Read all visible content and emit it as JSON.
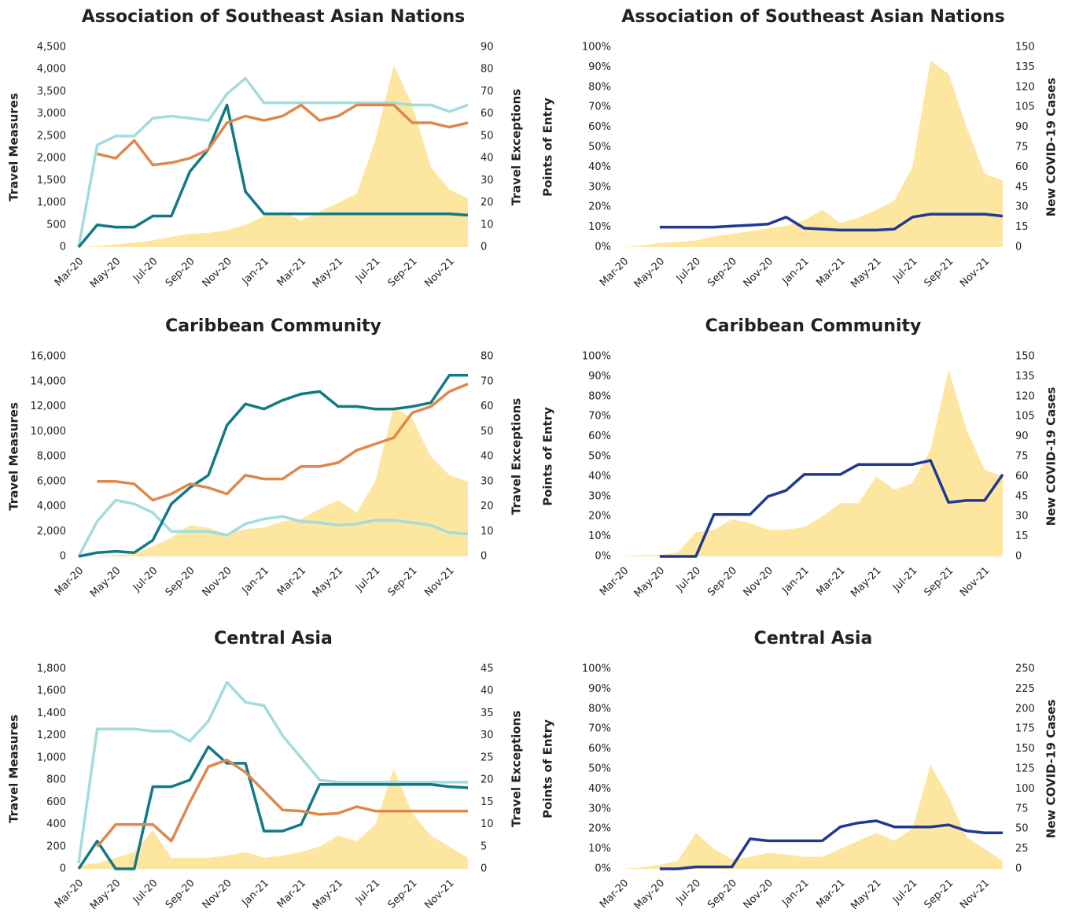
{
  "chart_data": [
    {
      "type": "line",
      "title": "Association of Southeast Asian Nations",
      "ylabel": "Travel Measures",
      "y2label": "Travel Exceptions",
      "categories": [
        "Mar-20",
        null,
        "May-20",
        null,
        "Jul-20",
        null,
        "Sep-20",
        null,
        "Nov-20",
        null,
        "Jan-21",
        null,
        "Mar-21",
        null,
        "May-21",
        null,
        "Jul-21",
        null,
        "Sep-21",
        null,
        "Nov-21",
        null
      ],
      "ylim": [
        0,
        4500
      ],
      "yticks": [
        0,
        500,
        {
          "value": 1000,
          "label": "1,000"
        },
        {
          "value": 1500,
          "label": "1,500"
        },
        {
          "value": 2000,
          "label": "2,000"
        },
        {
          "value": 2500,
          "label": "2,500"
        },
        {
          "value": 3000,
          "label": "3,000"
        },
        {
          "value": 3500,
          "label": "3,500"
        },
        {
          "value": 4000,
          "label": "4,000"
        },
        {
          "value": 4500,
          "label": "4,500"
        }
      ],
      "y2lim": [
        0,
        90
      ],
      "y2ticks": [
        0,
        10,
        20,
        30,
        40,
        50,
        60,
        70,
        80,
        90
      ],
      "series": [
        {
          "color": "#fde6a0",
          "area": true,
          "values": [
            0,
            20,
            60,
            100,
            150,
            230,
            300,
            320,
            380,
            500,
            700,
            800,
            600,
            800,
            1000,
            1200,
            2400,
            4100,
            3200,
            1800,
            1300,
            1100
          ]
        },
        {
          "color": "#a3dcdc",
          "values": [
            0,
            2300,
            2500,
            2500,
            2900,
            2950,
            2900,
            2850,
            3450,
            3800,
            3250,
            3250,
            3250,
            3250,
            3250,
            3250,
            3250,
            3250,
            3200,
            3200,
            3050,
            3200
          ]
        },
        {
          "color": "#127a86",
          "values": [
            0,
            500,
            450,
            450,
            700,
            700,
            1700,
            2200,
            3200,
            1250,
            750,
            750,
            750,
            750,
            750,
            750,
            750,
            750,
            750,
            750,
            750,
            720
          ]
        },
        {
          "color": "#e0874b",
          "values": [
            null,
            2100,
            2000,
            2400,
            1850,
            1900,
            2000,
            2200,
            2800,
            2950,
            2850,
            2950,
            3200,
            2850,
            2950,
            3200,
            3200,
            3200,
            2800,
            2800,
            2700,
            2800
          ]
        }
      ]
    },
    {
      "type": "line",
      "title": "Association of Southeast Asian Nations",
      "ylabel": "Points of Entry",
      "y2label": "New COVID-19 Cases",
      "categories": [
        "Mar-20",
        null,
        "May-20",
        null,
        "Jul-20",
        null,
        "Sep-20",
        null,
        "Nov-20",
        null,
        "Jan-21",
        null,
        "Mar-21",
        null,
        "May-21",
        null,
        "Jul-21",
        null,
        "Sep-21",
        null,
        "Nov-21",
        null
      ],
      "ylim": [
        0,
        100
      ],
      "yticks": [
        {
          "value": 0,
          "label": "0%"
        },
        {
          "value": 10,
          "label": "10%"
        },
        {
          "value": 20,
          "label": "20%"
        },
        {
          "value": 30,
          "label": "30%"
        },
        {
          "value": 40,
          "label": "40%"
        },
        {
          "value": 50,
          "label": "50%"
        },
        {
          "value": 60,
          "label": "60%"
        },
        {
          "value": 70,
          "label": "70%"
        },
        {
          "value": 80,
          "label": "80%"
        },
        {
          "value": 90,
          "label": "90%"
        },
        {
          "value": 100,
          "label": "100%"
        }
      ],
      "y2lim": [
        0,
        150
      ],
      "y2ticks": [
        0,
        15,
        30,
        45,
        60,
        75,
        90,
        105,
        120,
        135,
        150
      ],
      "series": [
        {
          "color": "#fde6a0",
          "area": true,
          "axis": "y2",
          "values": [
            0,
            1,
            3,
            4,
            5,
            8,
            10,
            12,
            14,
            16,
            20,
            28,
            18,
            22,
            28,
            35,
            60,
            140,
            130,
            90,
            55,
            50
          ]
        },
        {
          "color": "#1f3a93",
          "values": [
            null,
            null,
            10,
            10,
            10,
            10,
            10.5,
            11,
            11.5,
            15,
            9.5,
            9,
            8.5,
            8.5,
            8.5,
            9,
            15,
            16.5,
            16.5,
            16.5,
            16.5,
            15.5
          ]
        }
      ]
    },
    {
      "type": "line",
      "title": "Caribbean Community",
      "ylabel": "Travel Measures",
      "y2label": "Travel Exceptions",
      "categories": [
        "Mar-20",
        null,
        "May-20",
        null,
        "Jul-20",
        null,
        "Sep-20",
        null,
        "Nov-20",
        null,
        "Jan-21",
        null,
        "Mar-21",
        null,
        "May-21",
        null,
        "Jul-21",
        null,
        "Sep-21",
        null,
        "Nov-21",
        null
      ],
      "ylim": [
        0,
        16000
      ],
      "yticks": [
        0,
        {
          "value": 2000,
          "label": "2,000"
        },
        {
          "value": 4000,
          "label": "4,000"
        },
        {
          "value": 6000,
          "label": "6,000"
        },
        {
          "value": 8000,
          "label": "8,000"
        },
        {
          "value": 10000,
          "label": "10,000"
        },
        {
          "value": 12000,
          "label": "12,000"
        },
        {
          "value": 14000,
          "label": "14,000"
        },
        {
          "value": 16000,
          "label": "16,000"
        }
      ],
      "y2lim": [
        0,
        80
      ],
      "y2ticks": [
        0,
        10,
        20,
        30,
        40,
        50,
        60,
        70,
        80
      ],
      "series": [
        {
          "color": "#fde6a0",
          "area": true,
          "values": [
            0,
            50,
            100,
            200,
            800,
            1500,
            2500,
            2300,
            1800,
            2200,
            2300,
            2800,
            3000,
            3800,
            4500,
            3500,
            6000,
            12000,
            11000,
            8000,
            6500,
            6000
          ]
        },
        {
          "color": "#a3dcdc",
          "values": [
            0,
            2800,
            4500,
            4200,
            3500,
            2000,
            2000,
            2000,
            1700,
            2600,
            3000,
            3200,
            2800,
            2700,
            2500,
            2600,
            2900,
            2900,
            2700,
            2500,
            1900,
            1800
          ]
        },
        {
          "color": "#127a86",
          "values": [
            0,
            300,
            400,
            300,
            1300,
            4200,
            5500,
            6500,
            10500,
            12200,
            11800,
            12500,
            13000,
            13200,
            12000,
            12000,
            11800,
            11800,
            12000,
            12300,
            14500,
            14500
          ]
        },
        {
          "color": "#e0874b",
          "values": [
            null,
            6000,
            6000,
            5800,
            4500,
            5000,
            5800,
            5500,
            5000,
            6500,
            6200,
            6200,
            7200,
            7200,
            7500,
            8500,
            9000,
            9500,
            11500,
            12000,
            13200,
            13800
          ]
        }
      ]
    },
    {
      "type": "line",
      "title": "Caribbean Community",
      "ylabel": "Points of Entry",
      "y2label": "New COVID-19 Cases",
      "categories": [
        "Mar-20",
        null,
        "May-20",
        null,
        "Jul-20",
        null,
        "Sep-20",
        null,
        "Nov-20",
        null,
        "Jan-21",
        null,
        "Mar-21",
        null,
        "May-21",
        null,
        "Jul-21",
        null,
        "Sep-21",
        null,
        "Nov-21",
        null
      ],
      "ylim": [
        0,
        100
      ],
      "yticks": [
        {
          "value": 0,
          "label": "0%"
        },
        {
          "value": 10,
          "label": "10%"
        },
        {
          "value": 20,
          "label": "20%"
        },
        {
          "value": 30,
          "label": "30%"
        },
        {
          "value": 40,
          "label": "40%"
        },
        {
          "value": 50,
          "label": "50%"
        },
        {
          "value": 60,
          "label": "60%"
        },
        {
          "value": 70,
          "label": "70%"
        },
        {
          "value": 80,
          "label": "80%"
        },
        {
          "value": 90,
          "label": "90%"
        },
        {
          "value": 100,
          "label": "100%"
        }
      ],
      "y2lim": [
        0,
        150
      ],
      "y2ticks": [
        0,
        15,
        30,
        45,
        60,
        75,
        90,
        105,
        120,
        135,
        150
      ],
      "series": [
        {
          "color": "#fde6a0",
          "area": true,
          "axis": "y2",
          "values": [
            0,
            1,
            1,
            3,
            18,
            20,
            28,
            25,
            20,
            20,
            22,
            30,
            40,
            40,
            60,
            50,
            55,
            80,
            140,
            95,
            65,
            60
          ]
        },
        {
          "color": "#1f3a93",
          "values": [
            null,
            null,
            0,
            0,
            0,
            21,
            21,
            21,
            30,
            33,
            41,
            41,
            41,
            46,
            46,
            46,
            46,
            48,
            27,
            28,
            28,
            41
          ]
        }
      ]
    },
    {
      "type": "line",
      "title": "Central Asia",
      "ylabel": "Travel Measures",
      "y2label": "Travel Exceptions",
      "categories": [
        "Mar-20",
        null,
        "May-20",
        null,
        "Jul-20",
        null,
        "Sep-20",
        null,
        "Nov-20",
        null,
        "Jan-21",
        null,
        "Mar-21",
        null,
        "May-21",
        null,
        "Jul-21",
        null,
        "Sep-21",
        null,
        "Nov-21",
        null
      ],
      "ylim": [
        0,
        1800
      ],
      "yticks": [
        0,
        200,
        400,
        600,
        800,
        {
          "value": 1000,
          "label": "1,000"
        },
        {
          "value": 1200,
          "label": "1,200"
        },
        {
          "value": 1400,
          "label": "1,400"
        },
        {
          "value": 1600,
          "label": "1,600"
        },
        {
          "value": 1800,
          "label": "1,800"
        }
      ],
      "y2lim": [
        0,
        45
      ],
      "y2ticks": [
        0,
        5,
        10,
        15,
        20,
        25,
        30,
        35,
        40,
        45
      ],
      "series": [
        {
          "color": "#fde6a0",
          "area": true,
          "values": [
            30,
            50,
            100,
            150,
            350,
            100,
            100,
            100,
            120,
            150,
            100,
            120,
            150,
            200,
            300,
            250,
            400,
            900,
            500,
            300,
            200,
            100
          ]
        },
        {
          "color": "#a3dcdc",
          "values": [
            50,
            1260,
            1260,
            1260,
            1240,
            1240,
            1150,
            1330,
            1680,
            1500,
            1470,
            1200,
            1000,
            800,
            780,
            780,
            780,
            780,
            780,
            780,
            780,
            780
          ]
        },
        {
          "color": "#127a86",
          "values": [
            0,
            250,
            0,
            0,
            740,
            740,
            800,
            1100,
            950,
            950,
            340,
            340,
            400,
            760,
            760,
            760,
            760,
            760,
            760,
            760,
            740,
            730
          ]
        },
        {
          "color": "#e0874b",
          "values": [
            null,
            200,
            400,
            400,
            400,
            250,
            600,
            920,
            980,
            870,
            700,
            530,
            520,
            490,
            500,
            560,
            520,
            520,
            520,
            520,
            520,
            520
          ]
        }
      ]
    },
    {
      "type": "line",
      "title": "Central Asia",
      "ylabel": "Points of Entry",
      "y2label": "New COVID-19 Cases",
      "categories": [
        "Mar-20",
        null,
        "May-20",
        null,
        "Jul-20",
        null,
        "Sep-20",
        null,
        "Nov-20",
        null,
        "Jan-21",
        null,
        "Mar-21",
        null,
        "May-21",
        null,
        "Jul-21",
        null,
        "Sep-21",
        null,
        "Nov-21",
        null
      ],
      "ylim": [
        0,
        100
      ],
      "yticks": [
        {
          "value": 0,
          "label": "0%"
        },
        {
          "value": 10,
          "label": "10%"
        },
        {
          "value": 20,
          "label": "20%"
        },
        {
          "value": 30,
          "label": "30%"
        },
        {
          "value": 40,
          "label": "40%"
        },
        {
          "value": 50,
          "label": "50%"
        },
        {
          "value": 60,
          "label": "60%"
        },
        {
          "value": 70,
          "label": "70%"
        },
        {
          "value": 80,
          "label": "80%"
        },
        {
          "value": 90,
          "label": "90%"
        },
        {
          "value": 100,
          "label": "100%"
        }
      ],
      "y2lim": [
        0,
        250
      ],
      "y2ticks": [
        0,
        25,
        50,
        75,
        100,
        125,
        150,
        175,
        200,
        225,
        250
      ],
      "series": [
        {
          "color": "#fde6a0",
          "area": true,
          "axis": "y2",
          "values": [
            0,
            2,
            5,
            10,
            45,
            25,
            12,
            15,
            20,
            18,
            15,
            15,
            25,
            35,
            45,
            35,
            50,
            130,
            90,
            40,
            25,
            10
          ]
        },
        {
          "color": "#1f3a93",
          "values": [
            null,
            null,
            0,
            0,
            1,
            1,
            1,
            15,
            14,
            14,
            14,
            14,
            21,
            23,
            24,
            21,
            21,
            21,
            22,
            19,
            18,
            18
          ]
        }
      ]
    }
  ]
}
